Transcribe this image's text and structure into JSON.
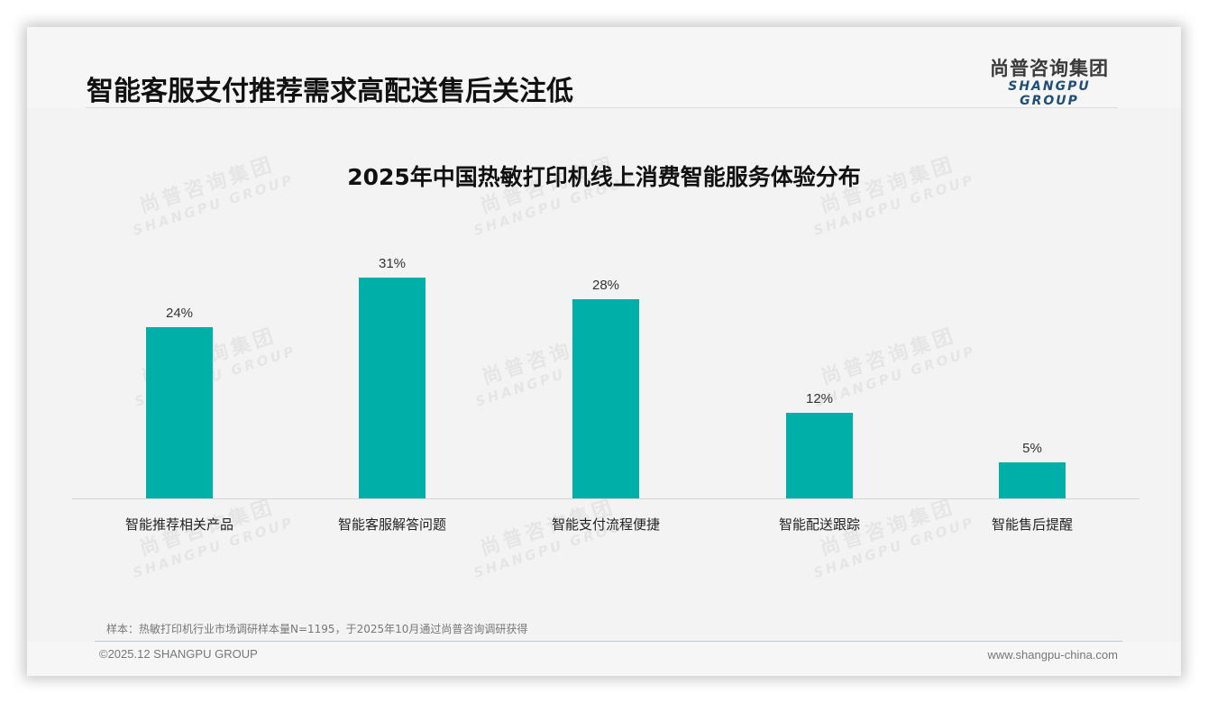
{
  "header": {
    "title": "智能客服支付推荐需求高配送售后关注低",
    "logo_cn": "尚普咨询集团",
    "logo_en": "SHANGPU GROUP"
  },
  "watermark": {
    "cn": "尚普咨询集团",
    "en": "SHANGPU GROUP"
  },
  "footer": {
    "footnote": "样本：热敏打印机行业市场调研样本量N=1195，于2025年10月通过尚普咨询调研获得",
    "copyright": "©2025.12 SHANGPU GROUP",
    "website": "www.shangpu-china.com"
  },
  "colors": {
    "bar": "#00afa8",
    "brand_blue": "#1f4e79"
  },
  "chart_data": {
    "type": "bar",
    "title": "2025年中国热敏打印机线上消费智能服务体验分布",
    "categories": [
      "智能推荐相关产品",
      "智能客服解答问题",
      "智能支付流程便捷",
      "智能配送跟踪",
      "智能售后提醒"
    ],
    "values": [
      24,
      31,
      28,
      12,
      5
    ],
    "value_labels": [
      "24%",
      "31%",
      "28%",
      "12%",
      "5%"
    ],
    "unit": "%",
    "xlabel": "",
    "ylabel": "",
    "ylim": [
      0,
      31
    ],
    "grid": false,
    "legend": "none"
  }
}
